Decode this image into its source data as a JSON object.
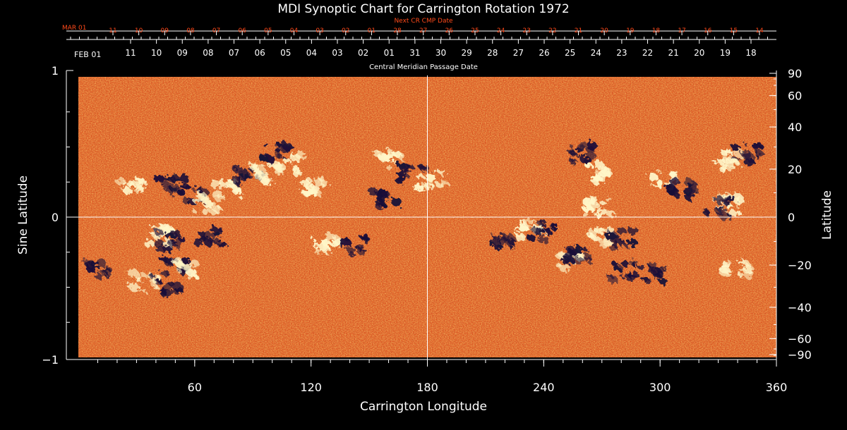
{
  "chart_data": {
    "type": "heatmap",
    "title": "MDI Synoptic Chart for Carrington Rotation 1972",
    "xlabel": "Carrington Longitude",
    "ylabel_left": "Sine Latitude",
    "ylabel_right": "Latitude",
    "xlim": [
      0,
      360
    ],
    "ylim": [
      -1,
      1
    ],
    "x_ticks": [
      {
        "value": 60,
        "label": "60"
      },
      {
        "value": 120,
        "label": "120"
      },
      {
        "value": 180,
        "label": "180"
      },
      {
        "value": 240,
        "label": "240"
      },
      {
        "value": 300,
        "label": "300"
      },
      {
        "value": 360,
        "label": "360"
      }
    ],
    "y_left_ticks": [
      {
        "value": 1,
        "label": "1"
      },
      {
        "value": 0,
        "label": "0"
      },
      {
        "value": -1,
        "label": "−1"
      }
    ],
    "y_right_ticks": [
      {
        "value": 90,
        "label": "90"
      },
      {
        "value": 60,
        "label": "60"
      },
      {
        "value": 40,
        "label": "40"
      },
      {
        "value": 20,
        "label": "20"
      },
      {
        "value": 0,
        "label": "0"
      },
      {
        "value": -20,
        "label": "−20"
      },
      {
        "value": -40,
        "label": "−40"
      },
      {
        "value": -60,
        "label": "−60"
      },
      {
        "value": -90,
        "label": "−90"
      }
    ],
    "crosshair": {
      "longitude": 180,
      "sine_latitude": 0
    },
    "top_axis_label": "Central Meridian Passage Date",
    "top_axis_start_label": "FEB 01",
    "top_axis_dates": [
      "11",
      "10",
      "09",
      "08",
      "07",
      "06",
      "05",
      "04",
      "03",
      "02",
      "01",
      "31",
      "30",
      "29",
      "28",
      "27",
      "26",
      "25",
      "24",
      "23",
      "22",
      "21",
      "20",
      "19",
      "18"
    ],
    "next_cr_axis_label": "Next CR CMP Date",
    "next_cr_start_label": "MAR 01",
    "next_cr_dates": [
      "11",
      "10",
      "09",
      "08",
      "07",
      "06",
      "05",
      "04",
      "03",
      "02",
      "01",
      "28",
      "27",
      "26",
      "25",
      "24",
      "23",
      "22",
      "21",
      "20",
      "19",
      "18",
      "17",
      "16",
      "15",
      "14"
    ],
    "colors": {
      "background": "#000000",
      "axes": "#ffffff",
      "next_cr": "#ff4a1a",
      "field_base": "#e0521c",
      "positive_polarity": "#fff6c8",
      "negative_polarity": "#1a1238"
    },
    "active_regions": [
      {
        "lon": 28,
        "sinlat": 0.24,
        "polarity": "positive"
      },
      {
        "lon": 48,
        "sinlat": 0.22,
        "polarity": "negative"
      },
      {
        "lon": 60,
        "sinlat": 0.16,
        "polarity": "negative"
      },
      {
        "lon": 66,
        "sinlat": 0.1,
        "polarity": "positive"
      },
      {
        "lon": 77,
        "sinlat": 0.2,
        "polarity": "positive"
      },
      {
        "lon": 88,
        "sinlat": 0.28,
        "polarity": "negative"
      },
      {
        "lon": 102,
        "sinlat": 0.46,
        "polarity": "negative"
      },
      {
        "lon": 108,
        "sinlat": 0.38,
        "polarity": "positive"
      },
      {
        "lon": 95,
        "sinlat": 0.31,
        "polarity": "positive"
      },
      {
        "lon": 122,
        "sinlat": 0.22,
        "polarity": "positive"
      },
      {
        "lon": 160,
        "sinlat": 0.41,
        "polarity": "positive"
      },
      {
        "lon": 172,
        "sinlat": 0.32,
        "polarity": "negative"
      },
      {
        "lon": 182,
        "sinlat": 0.26,
        "polarity": "positive"
      },
      {
        "lon": 158,
        "sinlat": 0.14,
        "polarity": "negative"
      },
      {
        "lon": 232,
        "sinlat": -0.09,
        "polarity": "positive"
      },
      {
        "lon": 220,
        "sinlat": -0.18,
        "polarity": "negative"
      },
      {
        "lon": 240,
        "sinlat": -0.1,
        "polarity": "negative"
      },
      {
        "lon": 252,
        "sinlat": -0.32,
        "polarity": "positive"
      },
      {
        "lon": 258,
        "sinlat": -0.26,
        "polarity": "negative"
      },
      {
        "lon": 270,
        "sinlat": -0.14,
        "polarity": "positive"
      },
      {
        "lon": 280,
        "sinlat": -0.16,
        "polarity": "negative"
      },
      {
        "lon": 280,
        "sinlat": -0.38,
        "polarity": "negative"
      },
      {
        "lon": 297,
        "sinlat": -0.4,
        "polarity": "negative"
      },
      {
        "lon": 260,
        "sinlat": 0.45,
        "polarity": "negative"
      },
      {
        "lon": 270,
        "sinlat": 0.32,
        "polarity": "positive"
      },
      {
        "lon": 302,
        "sinlat": 0.27,
        "polarity": "positive"
      },
      {
        "lon": 312,
        "sinlat": 0.2,
        "polarity": "negative"
      },
      {
        "lon": 336,
        "sinlat": 0.09,
        "polarity": "positive"
      },
      {
        "lon": 330,
        "sinlat": 0.07,
        "polarity": "negative"
      },
      {
        "lon": 334,
        "sinlat": 0.4,
        "polarity": "positive"
      },
      {
        "lon": 345,
        "sinlat": 0.45,
        "polarity": "negative"
      },
      {
        "lon": 50,
        "sinlat": -0.36,
        "polarity": "negative"
      },
      {
        "lon": 55,
        "sinlat": -0.37,
        "polarity": "positive"
      },
      {
        "lon": 35,
        "sinlat": -0.46,
        "polarity": "positive"
      },
      {
        "lon": 45,
        "sinlat": -0.48,
        "polarity": "negative"
      },
      {
        "lon": 42,
        "sinlat": -0.13,
        "polarity": "positive"
      },
      {
        "lon": 48,
        "sinlat": -0.17,
        "polarity": "negative"
      },
      {
        "lon": 68,
        "sinlat": -0.14,
        "polarity": "negative"
      },
      {
        "lon": 128,
        "sinlat": -0.19,
        "polarity": "positive"
      },
      {
        "lon": 142,
        "sinlat": -0.2,
        "polarity": "negative"
      },
      {
        "lon": 268,
        "sinlat": 0.07,
        "polarity": "positive"
      },
      {
        "lon": 340,
        "sinlat": -0.36,
        "polarity": "positive"
      },
      {
        "lon": 10,
        "sinlat": -0.37,
        "polarity": "negative"
      }
    ]
  }
}
